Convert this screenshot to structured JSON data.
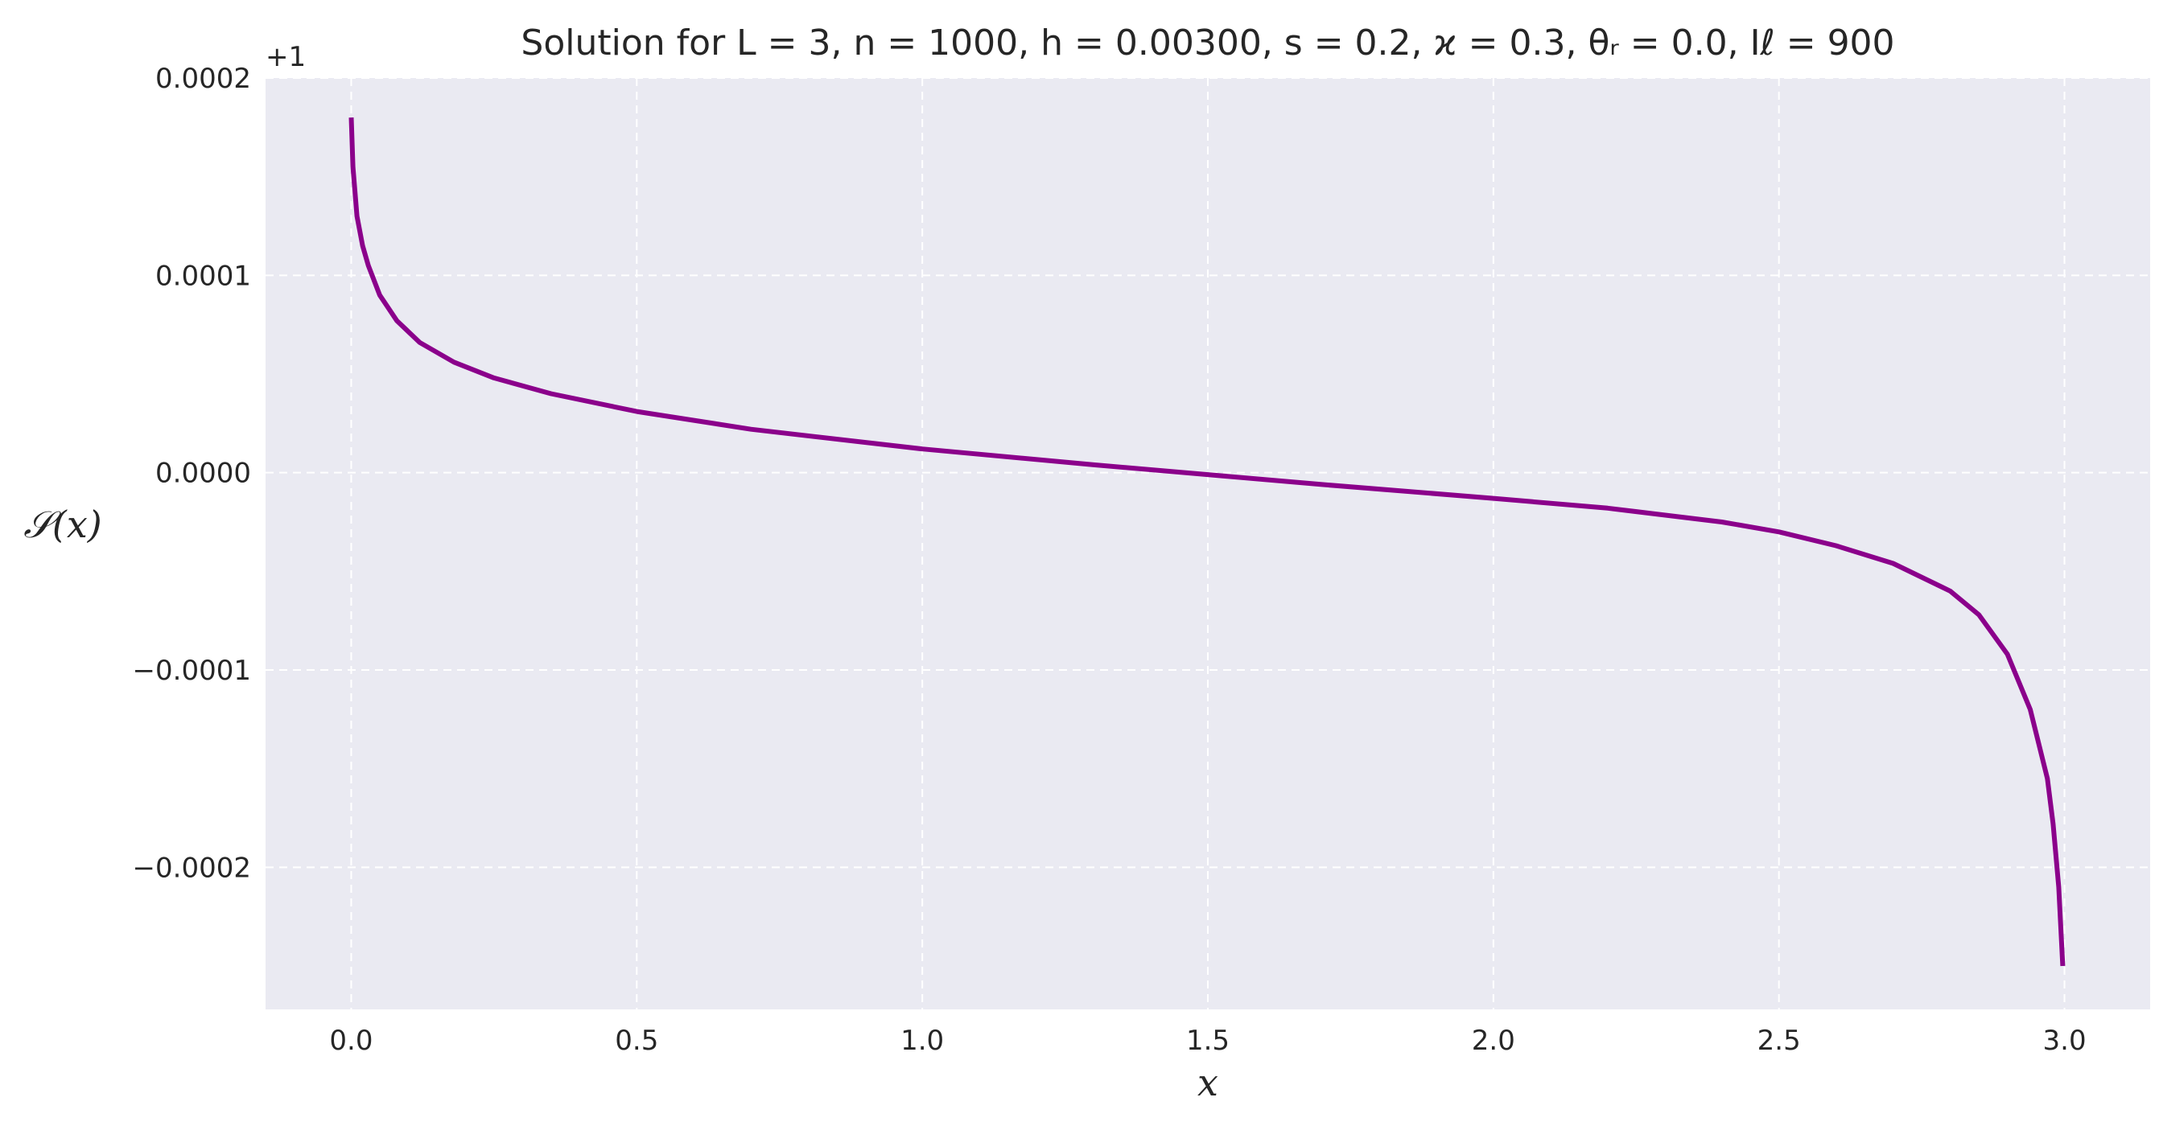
{
  "chart_data": {
    "type": "line",
    "title": "Solution for L = 3, n = 1000, h = 0.00300, s = 0.2, ϰ = 0.3, θᵣ = 0.0, Iℓ = 900",
    "xlabel": "x",
    "ylabel": "𝒮(x)",
    "y_offset_label": "+1",
    "xlim": [
      -0.15,
      3.15
    ],
    "ylim": [
      -0.000272,
      0.0002
    ],
    "x_ticks": [
      0.0,
      0.5,
      1.0,
      1.5,
      2.0,
      2.5,
      3.0
    ],
    "x_tick_labels": [
      "0.0",
      "0.5",
      "1.0",
      "1.5",
      "2.0",
      "2.5",
      "3.0"
    ],
    "y_ticks": [
      0.0002,
      0.0001,
      0.0,
      -0.0001,
      -0.0002
    ],
    "y_tick_labels": [
      "0.0002",
      "0.0001",
      "0.0000",
      "−0.0001",
      "−0.0002"
    ],
    "grid": true,
    "colors": {
      "line": "#8b008b",
      "plot_background": "#eaeaf2",
      "grid": "#ffffff",
      "text": "#262626"
    },
    "series": [
      {
        "name": "S(x)",
        "x": [
          0.0,
          0.003,
          0.01,
          0.02,
          0.03,
          0.05,
          0.08,
          0.12,
          0.18,
          0.25,
          0.35,
          0.5,
          0.7,
          1.0,
          1.3,
          1.5,
          1.7,
          2.0,
          2.2,
          2.4,
          2.5,
          2.6,
          2.7,
          2.8,
          2.85,
          2.9,
          2.94,
          2.97,
          2.98,
          2.99,
          2.997
        ],
        "values": [
          0.00018,
          0.000155,
          0.00013,
          0.000115,
          0.000105,
          9e-05,
          7.7e-05,
          6.6e-05,
          5.6e-05,
          4.8e-05,
          4e-05,
          3.1e-05,
          2.2e-05,
          1.2e-05,
          4e-06,
          -1e-06,
          -6e-06,
          -1.3e-05,
          -1.8e-05,
          -2.5e-05,
          -3e-05,
          -3.7e-05,
          -4.6e-05,
          -6e-05,
          -7.2e-05,
          -9.2e-05,
          -0.00012,
          -0.000155,
          -0.000178,
          -0.00021,
          -0.00025
        ]
      }
    ]
  }
}
